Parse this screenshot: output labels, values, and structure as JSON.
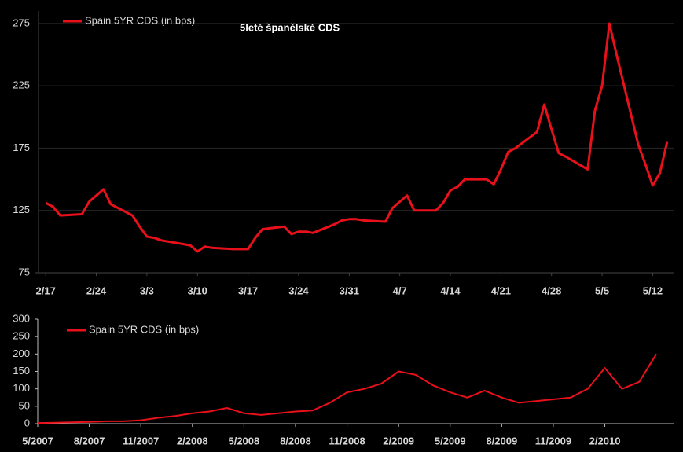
{
  "chart_data": [
    {
      "type": "line",
      "annotation": "5leté španělské CDS",
      "legend": "upper left",
      "grid": true,
      "ylim": [
        75,
        285
      ],
      "yticks": [
        75,
        125,
        175,
        225,
        275
      ],
      "xlim": [
        "2/16",
        "5/15"
      ],
      "xticks": [
        "2/17",
        "2/24",
        "3/3",
        "3/10",
        "3/17",
        "3/24",
        "3/31",
        "4/7",
        "4/14",
        "4/21",
        "4/28",
        "5/5",
        "5/12"
      ],
      "x": [
        "2/17",
        "2/18",
        "2/19",
        "2/22",
        "2/23",
        "2/25",
        "2/26",
        "3/1",
        "3/2",
        "3/3",
        "3/4",
        "3/5",
        "3/8",
        "3/9",
        "3/10",
        "3/11",
        "3/12",
        "3/15",
        "3/16",
        "3/17",
        "3/18",
        "3/19",
        "3/22",
        "3/23",
        "3/24",
        "3/25",
        "3/26",
        "3/29",
        "3/30",
        "3/31",
        "4/1",
        "4/2",
        "4/5",
        "4/6",
        "4/7",
        "4/8",
        "4/9",
        "4/12",
        "4/13",
        "4/14",
        "4/15",
        "4/16",
        "4/19",
        "4/20",
        "4/21",
        "4/22",
        "4/23",
        "4/26",
        "4/27",
        "4/28",
        "4/29",
        "4/30",
        "5/3",
        "5/4",
        "5/5",
        "5/6",
        "5/7",
        "5/10",
        "5/11",
        "5/12",
        "5/13",
        "5/14"
      ],
      "series": [
        {
          "name": "Spain 5YR CDS (in bps)",
          "color": "#e8101a",
          "values": [
            131,
            128,
            121,
            122,
            132,
            142,
            130,
            121,
            112,
            104,
            103,
            101,
            98,
            97,
            92,
            96,
            95,
            94,
            94,
            94,
            103,
            110,
            112,
            106,
            108,
            108,
            107,
            114,
            117,
            118,
            118,
            117,
            116,
            127,
            132,
            137,
            125,
            125,
            131,
            141,
            144,
            150,
            150,
            146,
            158,
            172,
            175,
            188,
            210,
            190,
            171,
            168,
            158,
            205,
            225,
            275,
            250,
            178,
            162,
            145,
            155,
            180
          ]
        }
      ]
    },
    {
      "type": "line",
      "legend": "upper left",
      "grid": false,
      "ylim": [
        0,
        300
      ],
      "yticks": [
        0,
        50,
        100,
        150,
        200,
        250,
        300
      ],
      "xlim": [
        "5/2007",
        "6/2010"
      ],
      "xticks": [
        "5/2007",
        "8/2007",
        "11/2007",
        "2/2008",
        "5/2008",
        "8/2008",
        "11/2008",
        "2/2009",
        "5/2009",
        "8/2009",
        "11/2009",
        "2/2010"
      ],
      "x": [
        "5/2007",
        "6/2007",
        "7/2007",
        "8/2007",
        "9/2007",
        "10/2007",
        "11/2007",
        "12/2007",
        "1/2008",
        "2/2008",
        "3/2008",
        "4/2008",
        "5/2008",
        "6/2008",
        "7/2008",
        "8/2008",
        "9/2008",
        "10/2008",
        "11/2008",
        "12/2008",
        "1/2009",
        "2/2009",
        "3/2009",
        "4/2009",
        "5/2009",
        "6/2009",
        "7/2009",
        "8/2009",
        "9/2009",
        "10/2009",
        "11/2009",
        "12/2009",
        "1/2010",
        "2/2010",
        "3/2010",
        "4/2010",
        "5/2010"
      ],
      "series": [
        {
          "name": "Spain 5YR CDS (in bps)",
          "color": "#e8101a",
          "values": [
            2,
            3,
            4,
            5,
            7,
            7,
            10,
            17,
            22,
            30,
            35,
            45,
            30,
            25,
            30,
            35,
            38,
            60,
            90,
            100,
            115,
            150,
            140,
            110,
            90,
            75,
            95,
            75,
            60,
            65,
            70,
            75,
            100,
            160,
            100,
            120,
            200
          ]
        }
      ]
    }
  ]
}
